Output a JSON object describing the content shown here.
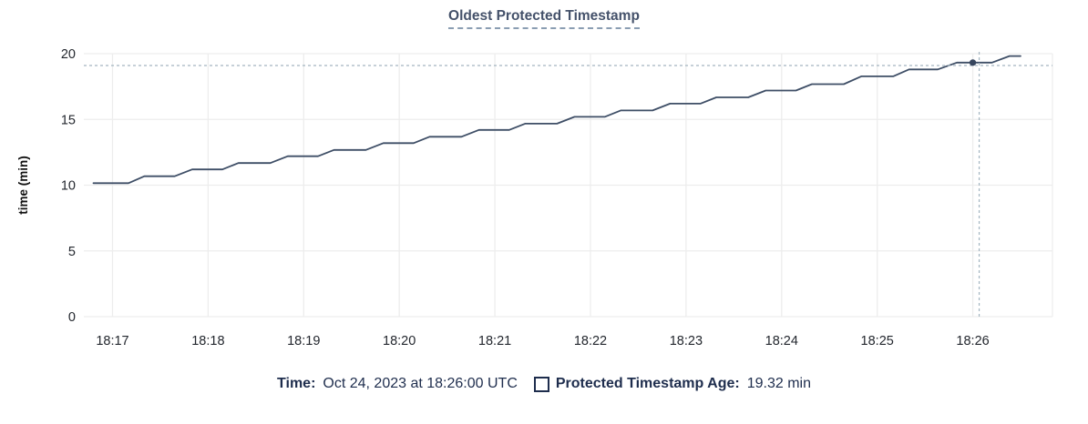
{
  "header": {
    "title": "Oldest Protected Timestamp"
  },
  "footer": {
    "time_label": "Time:",
    "time_value": "Oct 24, 2023 at 18:26:00 UTC",
    "series_label": "Protected Timestamp Age:",
    "series_value": "19.32 min"
  },
  "colors": {
    "line": "#3e4e66",
    "point": "#36455e",
    "grid": "#ededed",
    "crosshair": "#a3b5c0",
    "tick_text": "#23272e",
    "axis_label_text": "#111111",
    "title_text": "#44516a",
    "legend_text": "#1e2d4d"
  },
  "chart_data": {
    "type": "line",
    "title": "Oldest Protected Timestamp",
    "xlabel": "",
    "ylabel": "time (min)",
    "ylim": [
      0,
      20
    ],
    "yticks": [
      0,
      5,
      10,
      15,
      20
    ],
    "grid": true,
    "legend_position": "bottom",
    "x_base_label": "seconds relative to 18:17:00",
    "x_domain_seconds": [
      -18,
      590
    ],
    "xticks": [
      {
        "t": 0,
        "label": "18:17"
      },
      {
        "t": 60,
        "label": "18:18"
      },
      {
        "t": 120,
        "label": "18:19"
      },
      {
        "t": 180,
        "label": "18:20"
      },
      {
        "t": 240,
        "label": "18:21"
      },
      {
        "t": 300,
        "label": "18:22"
      },
      {
        "t": 360,
        "label": "18:23"
      },
      {
        "t": 420,
        "label": "18:24"
      },
      {
        "t": 480,
        "label": "18:25"
      },
      {
        "t": 540,
        "label": "18:26"
      }
    ],
    "series": [
      {
        "name": "Protected Timestamp Age",
        "unit": "min",
        "points": [
          [
            -12,
            10.15
          ],
          [
            10,
            10.15
          ],
          [
            20,
            10.68
          ],
          [
            39,
            10.68
          ],
          [
            50,
            11.2
          ],
          [
            69,
            11.2
          ],
          [
            79,
            11.68
          ],
          [
            99,
            11.68
          ],
          [
            110,
            12.2
          ],
          [
            129,
            12.2
          ],
          [
            139,
            12.68
          ],
          [
            159,
            12.68
          ],
          [
            170,
            13.2
          ],
          [
            189,
            13.2
          ],
          [
            199,
            13.68
          ],
          [
            219,
            13.68
          ],
          [
            230,
            14.2
          ],
          [
            249,
            14.2
          ],
          [
            259,
            14.68
          ],
          [
            279,
            14.68
          ],
          [
            290,
            15.2
          ],
          [
            309,
            15.2
          ],
          [
            319,
            15.68
          ],
          [
            339,
            15.68
          ],
          [
            350,
            16.2
          ],
          [
            369,
            16.2
          ],
          [
            379,
            16.68
          ],
          [
            399,
            16.68
          ],
          [
            410,
            17.2
          ],
          [
            429,
            17.2
          ],
          [
            439,
            17.68
          ],
          [
            459,
            17.68
          ],
          [
            470,
            18.28
          ],
          [
            490,
            18.28
          ],
          [
            500,
            18.8
          ],
          [
            518,
            18.8
          ],
          [
            530,
            19.32
          ],
          [
            552,
            19.32
          ],
          [
            563,
            19.82
          ],
          [
            570,
            19.82
          ]
        ]
      }
    ],
    "crosshair": {
      "time_seconds": 544,
      "hline_value": 19.1,
      "point_time_seconds": 540,
      "point_value": 19.32,
      "hover_time_label": "Oct 24, 2023 at 18:26:00 UTC",
      "hover_value_label": "19.32 min"
    }
  }
}
